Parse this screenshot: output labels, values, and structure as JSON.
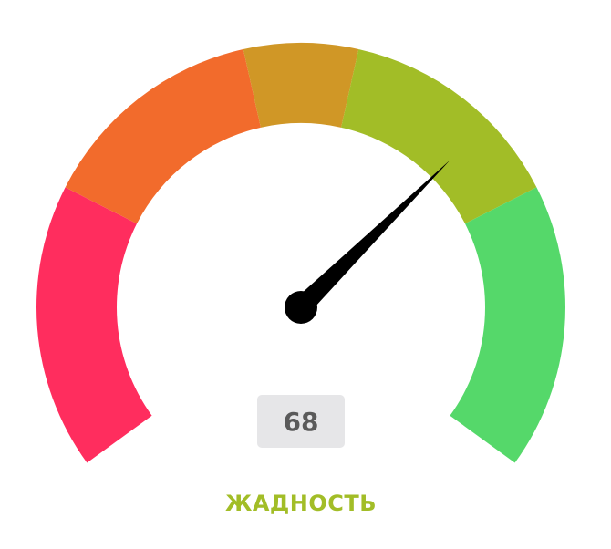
{
  "chart_data": {
    "type": "gauge",
    "value": 68,
    "range": [
      0,
      100
    ],
    "bands": [
      {
        "from": 0,
        "to": 25,
        "color": "#ff2d5e"
      },
      {
        "from": 25,
        "to": 45,
        "color": "#f26b2c"
      },
      {
        "from": 45,
        "to": 55,
        "color": "#d09726"
      },
      {
        "from": 55,
        "to": 75,
        "color": "#a2bd27"
      },
      {
        "from": 75,
        "to": 100,
        "color": "#55d86a"
      }
    ],
    "needle_color": "#000000"
  },
  "display": {
    "value_text": "68",
    "status_text": "ЖАДНОСТЬ",
    "status_color": "#a2bd27"
  }
}
